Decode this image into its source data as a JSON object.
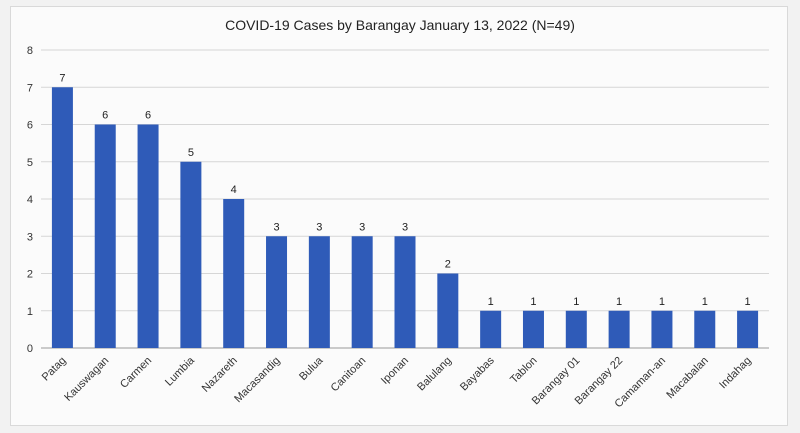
{
  "chart_data": {
    "type": "bar",
    "title": "COVID-19 Cases by Barangay January 13, 2022 (N=49)",
    "xlabel": "",
    "ylabel": "",
    "ylim": [
      0,
      8
    ],
    "yticks": [
      0,
      1,
      2,
      3,
      4,
      5,
      6,
      7,
      8
    ],
    "grid": true,
    "legend": "none",
    "bar_color": "#2f5bb8",
    "categories": [
      "Patag",
      "Kauswagan",
      "Carmen",
      "Lumbia",
      "Nazareth",
      "Macasandig",
      "Bulua",
      "Canitoan",
      "Iponan",
      "Balulang",
      "Bayabas",
      "Tablon",
      "Barangay 01",
      "Barangay 22",
      "Camaman-an",
      "Macabalan",
      "Indahag"
    ],
    "values": [
      7,
      6,
      6,
      5,
      4,
      3,
      3,
      3,
      3,
      2,
      1,
      1,
      1,
      1,
      1,
      1,
      1
    ]
  }
}
